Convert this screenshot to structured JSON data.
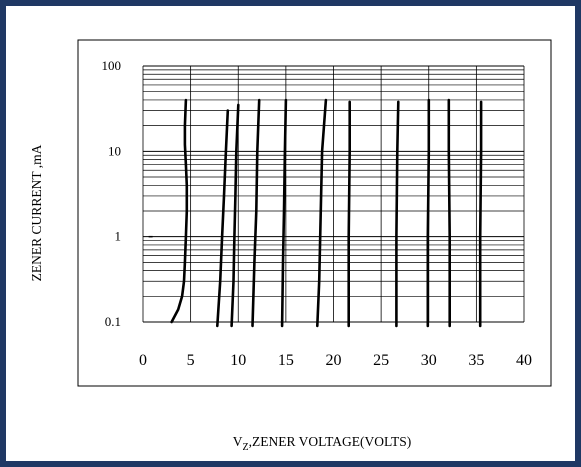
{
  "colors": {
    "border": "#1f3864",
    "ink": "#000000",
    "background": "#ffffff"
  },
  "chart_data": {
    "type": "line",
    "title": "",
    "xlabel_main": "V",
    "xlabel_sub": "Z",
    "xlabel_rest": ",ZENER VOLTAGE(VOLTS)",
    "ylabel": "ZENER CURRENT ,mA",
    "xlim": [
      0,
      40
    ],
    "ylim": [
      0.1,
      100
    ],
    "y_scale": "log",
    "x_ticks": [
      "0",
      "5",
      "10",
      "15",
      "20",
      "25",
      "30",
      "35",
      "40"
    ],
    "y_ticks": [
      "0.1",
      "1",
      "10",
      "100"
    ],
    "grid": true,
    "marker_point": {
      "x": 0.8,
      "y": 1
    },
    "series": [
      {
        "x": [
          3.0,
          3.7,
          4.1,
          4.3,
          4.4,
          4.5,
          4.6,
          4.6,
          4.5,
          4.4,
          4.4,
          4.5
        ],
        "y": [
          0.1,
          0.14,
          0.2,
          0.3,
          0.5,
          1,
          2,
          4,
          7,
          12,
          20,
          40
        ]
      },
      {
        "x": [
          7.8,
          8.1,
          8.3,
          8.5,
          8.7,
          8.9
        ],
        "y": [
          0.09,
          0.3,
          1,
          3,
          10,
          30
        ]
      },
      {
        "x": [
          9.3,
          9.5,
          9.6,
          9.7,
          9.8,
          10.0
        ],
        "y": [
          0.09,
          0.3,
          1,
          3,
          10,
          35
        ]
      },
      {
        "x": [
          11.5,
          11.7,
          11.9,
          12.0,
          12.2
        ],
        "y": [
          0.09,
          0.5,
          2,
          10,
          40
        ]
      },
      {
        "x": [
          14.6,
          14.7,
          14.8,
          14.9,
          15.0
        ],
        "y": [
          0.09,
          0.5,
          2,
          10,
          40
        ]
      },
      {
        "x": [
          18.3,
          18.5,
          18.6,
          18.7,
          18.8,
          19.2
        ],
        "y": [
          0.09,
          0.3,
          1,
          3,
          10,
          40
        ]
      },
      {
        "x": [
          21.6,
          21.6,
          21.7,
          21.7
        ],
        "y": [
          0.09,
          1,
          10,
          38
        ]
      },
      {
        "x": [
          26.6,
          26.6,
          26.7,
          26.8
        ],
        "y": [
          0.09,
          1,
          10,
          38
        ]
      },
      {
        "x": [
          29.9,
          29.9,
          30.0,
          30.0
        ],
        "y": [
          0.09,
          1,
          10,
          40
        ]
      },
      {
        "x": [
          32.2,
          32.2,
          32.1,
          32.1
        ],
        "y": [
          0.09,
          1,
          10,
          40
        ]
      },
      {
        "x": [
          35.4,
          35.4,
          35.5,
          35.5
        ],
        "y": [
          0.09,
          1,
          10,
          38
        ]
      }
    ]
  }
}
